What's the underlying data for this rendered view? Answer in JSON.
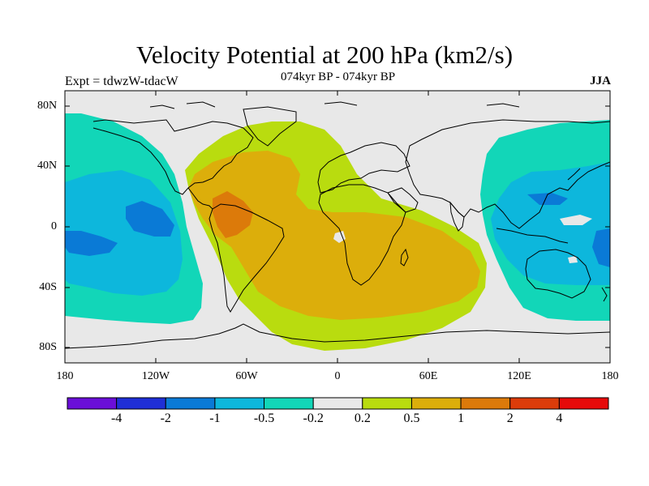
{
  "header": {
    "title": "Velocity Potential at 200 hPa (km2/s)",
    "left": "Expt = tdwzW-tdacW",
    "center": "074kyr BP - 074kyr BP",
    "right": "JJA"
  },
  "axes": {
    "lat_labels": [
      "80N",
      "40N",
      "0",
      "40S",
      "80S"
    ],
    "lon_labels": [
      "180",
      "120W",
      "60W",
      "0",
      "60E",
      "120E",
      "180"
    ]
  },
  "legend": {
    "levels": [
      "-4",
      "-2",
      "-1",
      "-0.5",
      "-0.2",
      "0.2",
      "0.5",
      "1",
      "2",
      "4"
    ],
    "colors": [
      "#6a0fd8",
      "#1f2fd6",
      "#0a7ad6",
      "#0db7dc",
      "#12d6b8",
      "#e8e8e8",
      "#b9dc0f",
      "#dcae0b",
      "#dc7a0a",
      "#dc3c0a",
      "#e60a0a"
    ]
  },
  "map_colors": {
    "neutral": "#e8e8e8",
    "pos_02": "#b9dc0f",
    "pos_05": "#dcae0b",
    "pos_1": "#dc7a0a",
    "neg_02": "#12d6b8",
    "neg_05": "#0db7dc",
    "neg_1": "#0a7ad6"
  }
}
